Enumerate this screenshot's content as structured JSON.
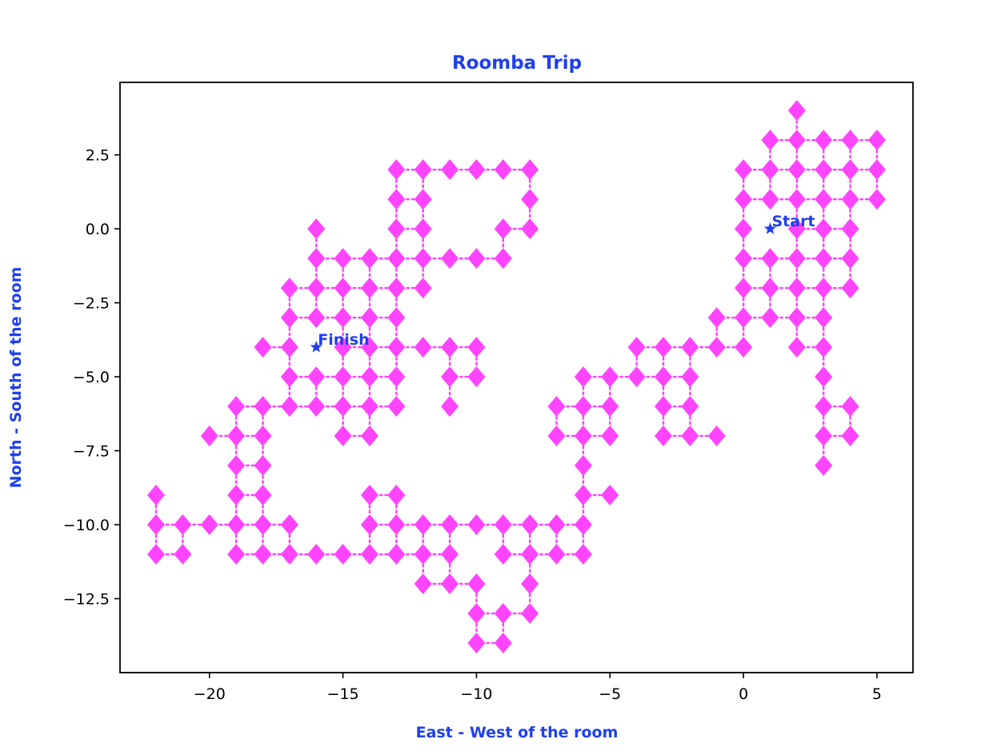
{
  "colors": {
    "accent": "#1f3fee",
    "marker": "#ff44ff",
    "path": "#ff44ff"
  },
  "chart_data": {
    "type": "line",
    "title": "Roomba Trip",
    "xlabel": "East - West of the room",
    "ylabel": "North - South of the room",
    "xlim": [
      -23.35,
      6.35
    ],
    "ylim": [
      -15.0,
      4.95
    ],
    "xticks": [
      -20,
      -15,
      -10,
      -5,
      0,
      5
    ],
    "xtick_labels": [
      "−20",
      "−15",
      "−10",
      "−5",
      "0",
      "5"
    ],
    "yticks": [
      2.5,
      0,
      -2.5,
      -5,
      -7.5,
      -10,
      -12.5
    ],
    "ytick_labels": [
      "2.5",
      "0.0",
      "−2.5",
      "−5.0",
      "−7.5",
      "−10.0",
      "−12.5"
    ],
    "grid": false,
    "marker": "diamond",
    "line_style": "dotted",
    "points": [
      [
        2,
        4
      ],
      [
        1,
        3
      ],
      [
        2,
        3
      ],
      [
        3,
        3
      ],
      [
        4,
        3
      ],
      [
        5,
        3
      ],
      [
        0,
        2
      ],
      [
        1,
        2
      ],
      [
        2,
        2
      ],
      [
        3,
        2
      ],
      [
        4,
        2
      ],
      [
        5,
        2
      ],
      [
        0,
        1
      ],
      [
        1,
        1
      ],
      [
        2,
        1
      ],
      [
        3,
        1
      ],
      [
        4,
        1
      ],
      [
        5,
        1
      ],
      [
        0,
        0
      ],
      [
        2,
        0
      ],
      [
        3,
        0
      ],
      [
        4,
        0
      ],
      [
        0,
        -1
      ],
      [
        1,
        -1
      ],
      [
        2,
        -1
      ],
      [
        3,
        -1
      ],
      [
        4,
        -1
      ],
      [
        0,
        -2
      ],
      [
        1,
        -2
      ],
      [
        2,
        -2
      ],
      [
        3,
        -2
      ],
      [
        4,
        -2
      ],
      [
        -1,
        -3
      ],
      [
        0,
        -3
      ],
      [
        1,
        -3
      ],
      [
        2,
        -3
      ],
      [
        3,
        -3
      ],
      [
        -1,
        -4
      ],
      [
        0,
        -4
      ],
      [
        2,
        -4
      ],
      [
        3,
        -4
      ],
      [
        3,
        -5
      ],
      [
        3,
        -6
      ],
      [
        4,
        -6
      ],
      [
        3,
        -7
      ],
      [
        4,
        -7
      ],
      [
        3,
        -8
      ],
      [
        -4,
        -4
      ],
      [
        -3,
        -4
      ],
      [
        -2,
        -4
      ],
      [
        -6,
        -5
      ],
      [
        -5,
        -5
      ],
      [
        -4,
        -5
      ],
      [
        -3,
        -5
      ],
      [
        -2,
        -5
      ],
      [
        -7,
        -6
      ],
      [
        -6,
        -6
      ],
      [
        -5,
        -6
      ],
      [
        -3,
        -6
      ],
      [
        -2,
        -6
      ],
      [
        -7,
        -7
      ],
      [
        -6,
        -7
      ],
      [
        -5,
        -7
      ],
      [
        -3,
        -7
      ],
      [
        -2,
        -7
      ],
      [
        -1,
        -7
      ],
      [
        -6,
        -8
      ],
      [
        -6,
        -9
      ],
      [
        -5,
        -9
      ],
      [
        -13,
        2
      ],
      [
        -12,
        2
      ],
      [
        -11,
        2
      ],
      [
        -10,
        2
      ],
      [
        -9,
        2
      ],
      [
        -8,
        2
      ],
      [
        -13,
        1
      ],
      [
        -12,
        1
      ],
      [
        -8,
        1
      ],
      [
        -16,
        0
      ],
      [
        -13,
        0
      ],
      [
        -12,
        0
      ],
      [
        -9,
        0
      ],
      [
        -8,
        0
      ],
      [
        -16,
        -1
      ],
      [
        -15,
        -1
      ],
      [
        -14,
        -1
      ],
      [
        -13,
        -1
      ],
      [
        -12,
        -1
      ],
      [
        -11,
        -1
      ],
      [
        -10,
        -1
      ],
      [
        -9,
        -1
      ],
      [
        -17,
        -2
      ],
      [
        -16,
        -2
      ],
      [
        -15,
        -2
      ],
      [
        -14,
        -2
      ],
      [
        -13,
        -2
      ],
      [
        -12,
        -2
      ],
      [
        -17,
        -3
      ],
      [
        -16,
        -3
      ],
      [
        -15,
        -3
      ],
      [
        -14,
        -3
      ],
      [
        -13,
        -3
      ],
      [
        -18,
        -4
      ],
      [
        -17,
        -4
      ],
      [
        -15,
        -4
      ],
      [
        -14,
        -4
      ],
      [
        -13,
        -4
      ],
      [
        -12,
        -4
      ],
      [
        -11,
        -4
      ],
      [
        -10,
        -4
      ],
      [
        -17,
        -5
      ],
      [
        -16,
        -5
      ],
      [
        -15,
        -5
      ],
      [
        -14,
        -5
      ],
      [
        -13,
        -5
      ],
      [
        -11,
        -5
      ],
      [
        -10,
        -5
      ],
      [
        -19,
        -6
      ],
      [
        -18,
        -6
      ],
      [
        -17,
        -6
      ],
      [
        -16,
        -6
      ],
      [
        -15,
        -6
      ],
      [
        -14,
        -6
      ],
      [
        -13,
        -6
      ],
      [
        -11,
        -6
      ],
      [
        -20,
        -7
      ],
      [
        -19,
        -7
      ],
      [
        -18,
        -7
      ],
      [
        -15,
        -7
      ],
      [
        -14,
        -7
      ],
      [
        -19,
        -8
      ],
      [
        -18,
        -8
      ],
      [
        -22,
        -9
      ],
      [
        -19,
        -9
      ],
      [
        -18,
        -9
      ],
      [
        -14,
        -9
      ],
      [
        -13,
        -9
      ],
      [
        -22,
        -10
      ],
      [
        -21,
        -10
      ],
      [
        -20,
        -10
      ],
      [
        -19,
        -10
      ],
      [
        -18,
        -10
      ],
      [
        -17,
        -10
      ],
      [
        -14,
        -10
      ],
      [
        -13,
        -10
      ],
      [
        -12,
        -10
      ],
      [
        -11,
        -10
      ],
      [
        -10,
        -10
      ],
      [
        -9,
        -10
      ],
      [
        -8,
        -10
      ],
      [
        -7,
        -10
      ],
      [
        -6,
        -10
      ],
      [
        -22,
        -11
      ],
      [
        -21,
        -11
      ],
      [
        -19,
        -11
      ],
      [
        -18,
        -11
      ],
      [
        -17,
        -11
      ],
      [
        -16,
        -11
      ],
      [
        -15,
        -11
      ],
      [
        -14,
        -11
      ],
      [
        -13,
        -11
      ],
      [
        -12,
        -11
      ],
      [
        -11,
        -11
      ],
      [
        -9,
        -11
      ],
      [
        -8,
        -11
      ],
      [
        -7,
        -11
      ],
      [
        -6,
        -11
      ],
      [
        -12,
        -12
      ],
      [
        -11,
        -12
      ],
      [
        -10,
        -12
      ],
      [
        -8,
        -12
      ],
      [
        -10,
        -13
      ],
      [
        -9,
        -13
      ],
      [
        -8,
        -13
      ],
      [
        -10,
        -14
      ],
      [
        -9,
        -14
      ]
    ],
    "start": {
      "x": 1,
      "y": 0,
      "label": "Start"
    },
    "finish": {
      "x": -16,
      "y": -4,
      "label": "Finish"
    }
  }
}
